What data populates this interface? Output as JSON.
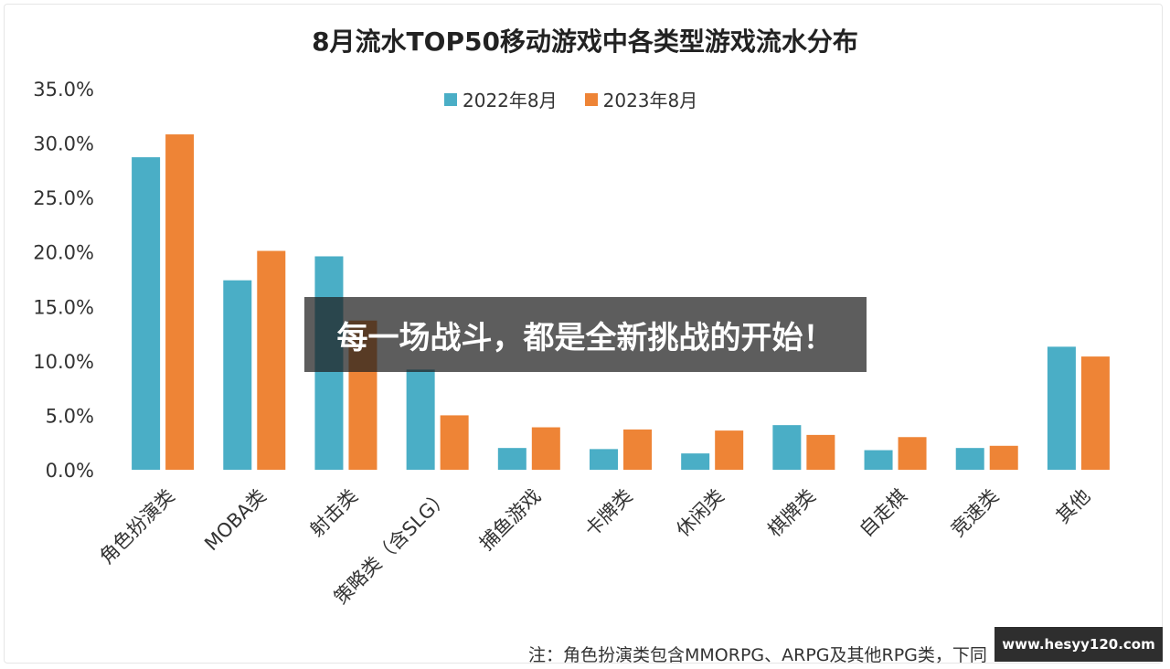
{
  "chart_data": {
    "type": "bar",
    "title": "8月流水TOP50移动游戏中各类型游戏流水分布",
    "categories": [
      "角色扮演类",
      "MOBA类",
      "射击类",
      "策略类（含SLG）",
      "捕鱼游戏",
      "卡牌类",
      "休闲类",
      "棋牌类",
      "自走棋",
      "竞速类",
      "其他"
    ],
    "series": [
      {
        "name": "2022年8月",
        "color": "#4aaec6",
        "values": [
          28.7,
          17.4,
          19.6,
          9.2,
          2.0,
          1.9,
          1.5,
          4.1,
          1.8,
          2.0,
          11.3
        ]
      },
      {
        "name": "2023年8月",
        "color": "#ee8436",
        "values": [
          30.8,
          20.1,
          13.7,
          5.0,
          3.9,
          3.7,
          3.6,
          3.2,
          3.0,
          2.2,
          10.4
        ]
      }
    ],
    "ylim": [
      0,
      35
    ],
    "yticks": [
      "0.0%",
      "5.0%",
      "10.0%",
      "15.0%",
      "20.0%",
      "25.0%",
      "30.0%",
      "35.0%"
    ],
    "grid": false,
    "legend_position": "top-center",
    "footnote": "注：角色扮演类包含MMORPG、ARPG及其他RPG类，下同"
  },
  "overlay": {
    "text": "每一场战斗，都是全新挑战的开始！"
  },
  "watermark": {
    "text": "www.hesyy120.com"
  }
}
